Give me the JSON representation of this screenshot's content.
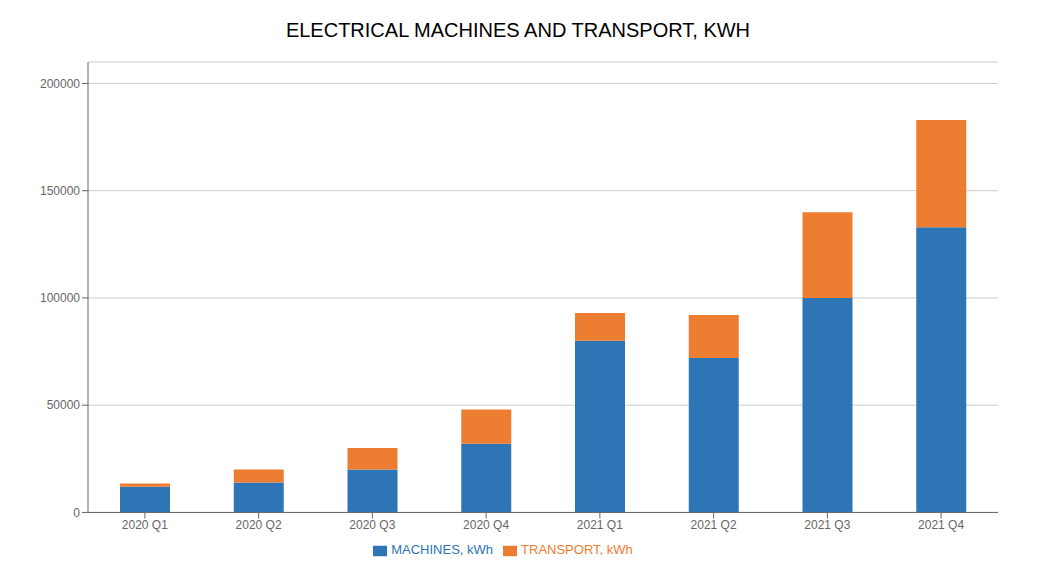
{
  "chart_data": {
    "type": "bar",
    "title": "ELECTRICAL MACHINES AND TRANSPORT, KWH",
    "categories": [
      "2020 Q1",
      "2020 Q2",
      "2020 Q3",
      "2020 Q4",
      "2021 Q1",
      "2021 Q2",
      "2021 Q3",
      "2021 Q4"
    ],
    "series": [
      {
        "name": "MACHINES, kWh",
        "color": "#2E75B6",
        "values": [
          12000,
          14000,
          20000,
          32000,
          80000,
          72000,
          100000,
          133000
        ]
      },
      {
        "name": "TRANSPORT, kWh",
        "color": "#ED7D31",
        "values": [
          1500,
          6000,
          10000,
          16000,
          13000,
          20000,
          40000,
          50000
        ]
      }
    ],
    "stacked": true,
    "ylim": [
      0,
      210000
    ],
    "yticks": [
      0,
      50000,
      100000,
      150000,
      200000
    ],
    "grid": true,
    "legend": "bottom"
  }
}
